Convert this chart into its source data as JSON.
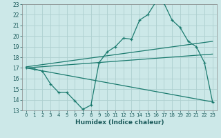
{
  "xlabel": "Humidex (Indice chaleur)",
  "ylabel": "",
  "background_color": "#cce8e8",
  "line_color": "#1a7a6e",
  "grid_color": "#aed0d0",
  "xlim": [
    -0.5,
    23.5
  ],
  "ylim": [
    13,
    23
  ],
  "xticks": [
    0,
    1,
    2,
    3,
    4,
    5,
    6,
    7,
    8,
    9,
    10,
    11,
    12,
    13,
    14,
    15,
    16,
    17,
    18,
    19,
    20,
    21,
    22,
    23
  ],
  "yticks": [
    13,
    14,
    15,
    16,
    17,
    18,
    19,
    20,
    21,
    22,
    23
  ],
  "curve1_x": [
    0,
    1,
    2,
    3,
    4,
    5,
    6,
    7,
    8,
    9,
    10,
    11,
    12,
    13,
    14,
    15,
    16,
    17,
    18,
    19,
    20,
    21,
    22,
    23
  ],
  "curve1_y": [
    17.0,
    16.9,
    16.7,
    15.5,
    14.7,
    14.7,
    13.9,
    13.1,
    13.5,
    17.5,
    18.5,
    19.0,
    19.8,
    19.7,
    21.5,
    22.0,
    23.2,
    23.1,
    21.5,
    20.8,
    19.5,
    19.0,
    17.5,
    13.8
  ],
  "curve2_x": [
    0,
    23
  ],
  "curve2_y": [
    17.1,
    19.5
  ],
  "curve3_x": [
    0,
    23
  ],
  "curve3_y": [
    17.0,
    18.3
  ],
  "curve4_x": [
    0,
    23
  ],
  "curve4_y": [
    17.0,
    13.8
  ]
}
